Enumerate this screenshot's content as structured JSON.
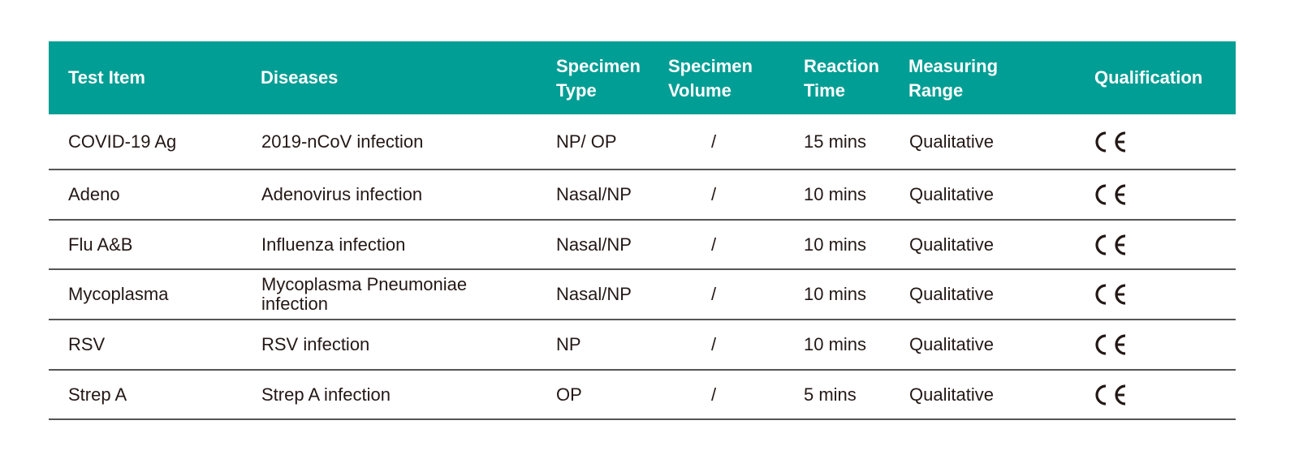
{
  "colors": {
    "header_bg": "#009e94",
    "header_text": "#ffffff",
    "text": "#231815"
  },
  "headers": {
    "test_item": "Test Item",
    "diseases": "Diseases",
    "specimen_type_1": "Specimen",
    "specimen_type_2": "Type",
    "specimen_volume_1": "Specimen",
    "specimen_volume_2": "Volume",
    "reaction_time_1": "Reaction",
    "reaction_time_2": "Time",
    "measuring_range_1": "Measuring",
    "measuring_range_2": "Range",
    "qualification": "Qualification"
  },
  "rows": [
    {
      "test_item": "COVID-19 Ag",
      "disease": "2019-nCoV infection",
      "specimen_type": "NP/ OP",
      "specimen_volume": "/",
      "reaction_time": "15 mins",
      "measuring_range": "Qualitative",
      "qualification": "CE"
    },
    {
      "test_item": "Adeno",
      "disease": "Adenovirus infection",
      "specimen_type": "Nasal/NP",
      "specimen_volume": "/",
      "reaction_time": "10 mins",
      "measuring_range": "Qualitative",
      "qualification": "CE"
    },
    {
      "test_item": "Flu A&B",
      "disease": "Influenza infection",
      "specimen_type": "Nasal/NP",
      "specimen_volume": "/",
      "reaction_time": "10 mins",
      "measuring_range": "Qualitative",
      "qualification": "CE"
    },
    {
      "test_item": "Mycoplasma",
      "disease": "Mycoplasma Pneumoniae infection",
      "disease_line1": "Mycoplasma Pneumoniae",
      "disease_line2": "infection",
      "specimen_type": "Nasal/NP",
      "specimen_volume": "/",
      "reaction_time": "10 mins",
      "measuring_range": "Qualitative",
      "qualification": "CE"
    },
    {
      "test_item": "RSV",
      "disease": "RSV infection",
      "specimen_type": "NP",
      "specimen_volume": "/",
      "reaction_time": "10 mins",
      "measuring_range": "Qualitative",
      "qualification": "CE"
    },
    {
      "test_item": "Strep A",
      "disease": "Strep A infection",
      "specimen_type": "OP",
      "specimen_volume": "/",
      "reaction_time": "5 mins",
      "measuring_range": "Qualitative",
      "qualification": "CE"
    }
  ]
}
